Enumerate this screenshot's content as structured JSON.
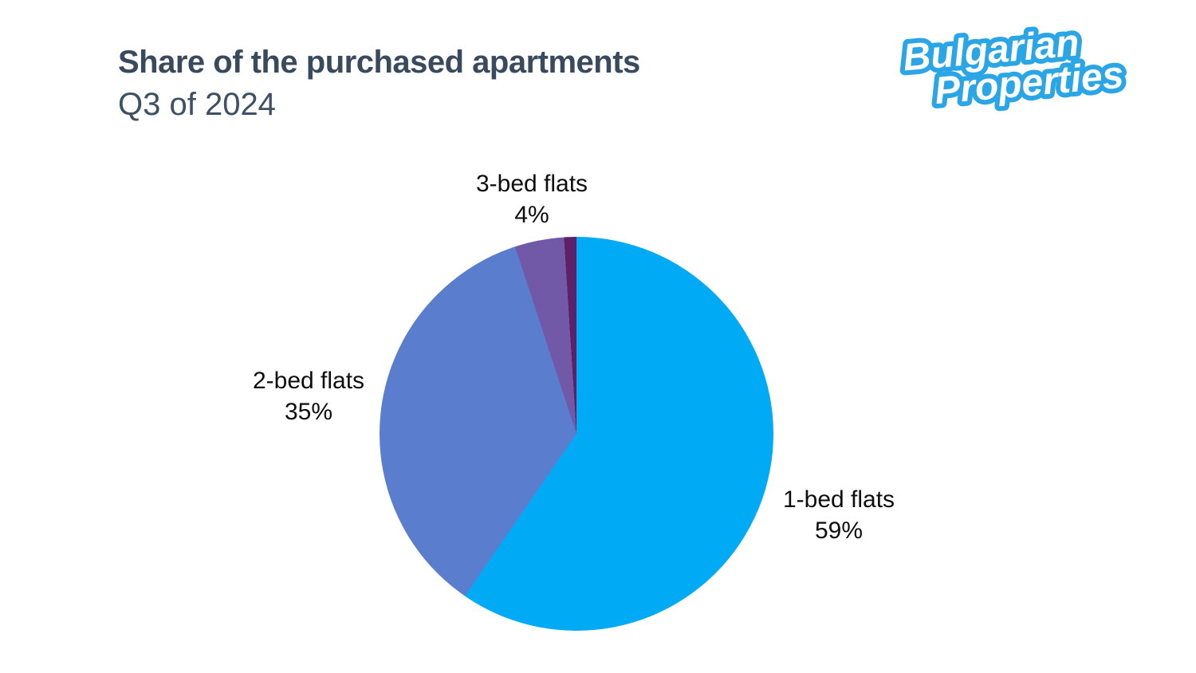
{
  "header": {
    "title": "Share of the purchased apartments",
    "subtitle": "Q3 of 2024",
    "title_color": "#394a5e"
  },
  "logo": {
    "line1": "Bulgarian",
    "line2": "Properties",
    "blue": "#2aa6e6"
  },
  "chart_data": {
    "type": "pie",
    "title": "Share of the purchased apartments",
    "subtitle": "Q3 of 2024",
    "legend": "none",
    "background": "#ffffff",
    "start_angle_deg": 0,
    "direction": "clockwise",
    "slices": [
      {
        "label": "1-bed flats",
        "pct_label": "59%",
        "value": 59,
        "color": "#00aaf5"
      },
      {
        "label": "2-bed flats",
        "pct_label": "35%",
        "value": 35,
        "color": "#5a7dce"
      },
      {
        "label": "3-bed flats",
        "pct_label": "4%",
        "value": 4,
        "color": "#7159a8"
      },
      {
        "label": "",
        "pct_label": "",
        "value": 1,
        "color": "#5e2167"
      }
    ]
  }
}
